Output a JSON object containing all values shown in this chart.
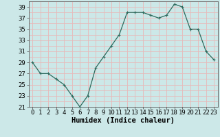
{
  "x": [
    0,
    1,
    2,
    3,
    4,
    5,
    6,
    7,
    8,
    9,
    10,
    11,
    12,
    13,
    14,
    15,
    16,
    17,
    18,
    19,
    20,
    21,
    22,
    23
  ],
  "y": [
    29,
    27,
    27,
    26,
    25,
    23,
    21,
    23,
    28,
    30,
    32,
    34,
    38,
    38,
    38,
    37.5,
    37,
    37.5,
    39.5,
    39,
    35,
    35,
    31,
    29.5
  ],
  "line_color": "#2d6b5e",
  "marker": "+",
  "bg_color": "#cce8e8",
  "grid_color": "#e8b8b8",
  "xlabel": "Humidex (Indice chaleur)",
  "ylim": [
    21,
    40
  ],
  "yticks": [
    21,
    23,
    25,
    27,
    29,
    31,
    33,
    35,
    37,
    39
  ],
  "xticks": [
    0,
    1,
    2,
    3,
    4,
    5,
    6,
    7,
    8,
    9,
    10,
    11,
    12,
    13,
    14,
    15,
    16,
    17,
    18,
    19,
    20,
    21,
    22,
    23
  ],
  "xlabel_fontsize": 7.5,
  "tick_fontsize": 6.5,
  "xlim": [
    -0.5,
    23.5
  ]
}
